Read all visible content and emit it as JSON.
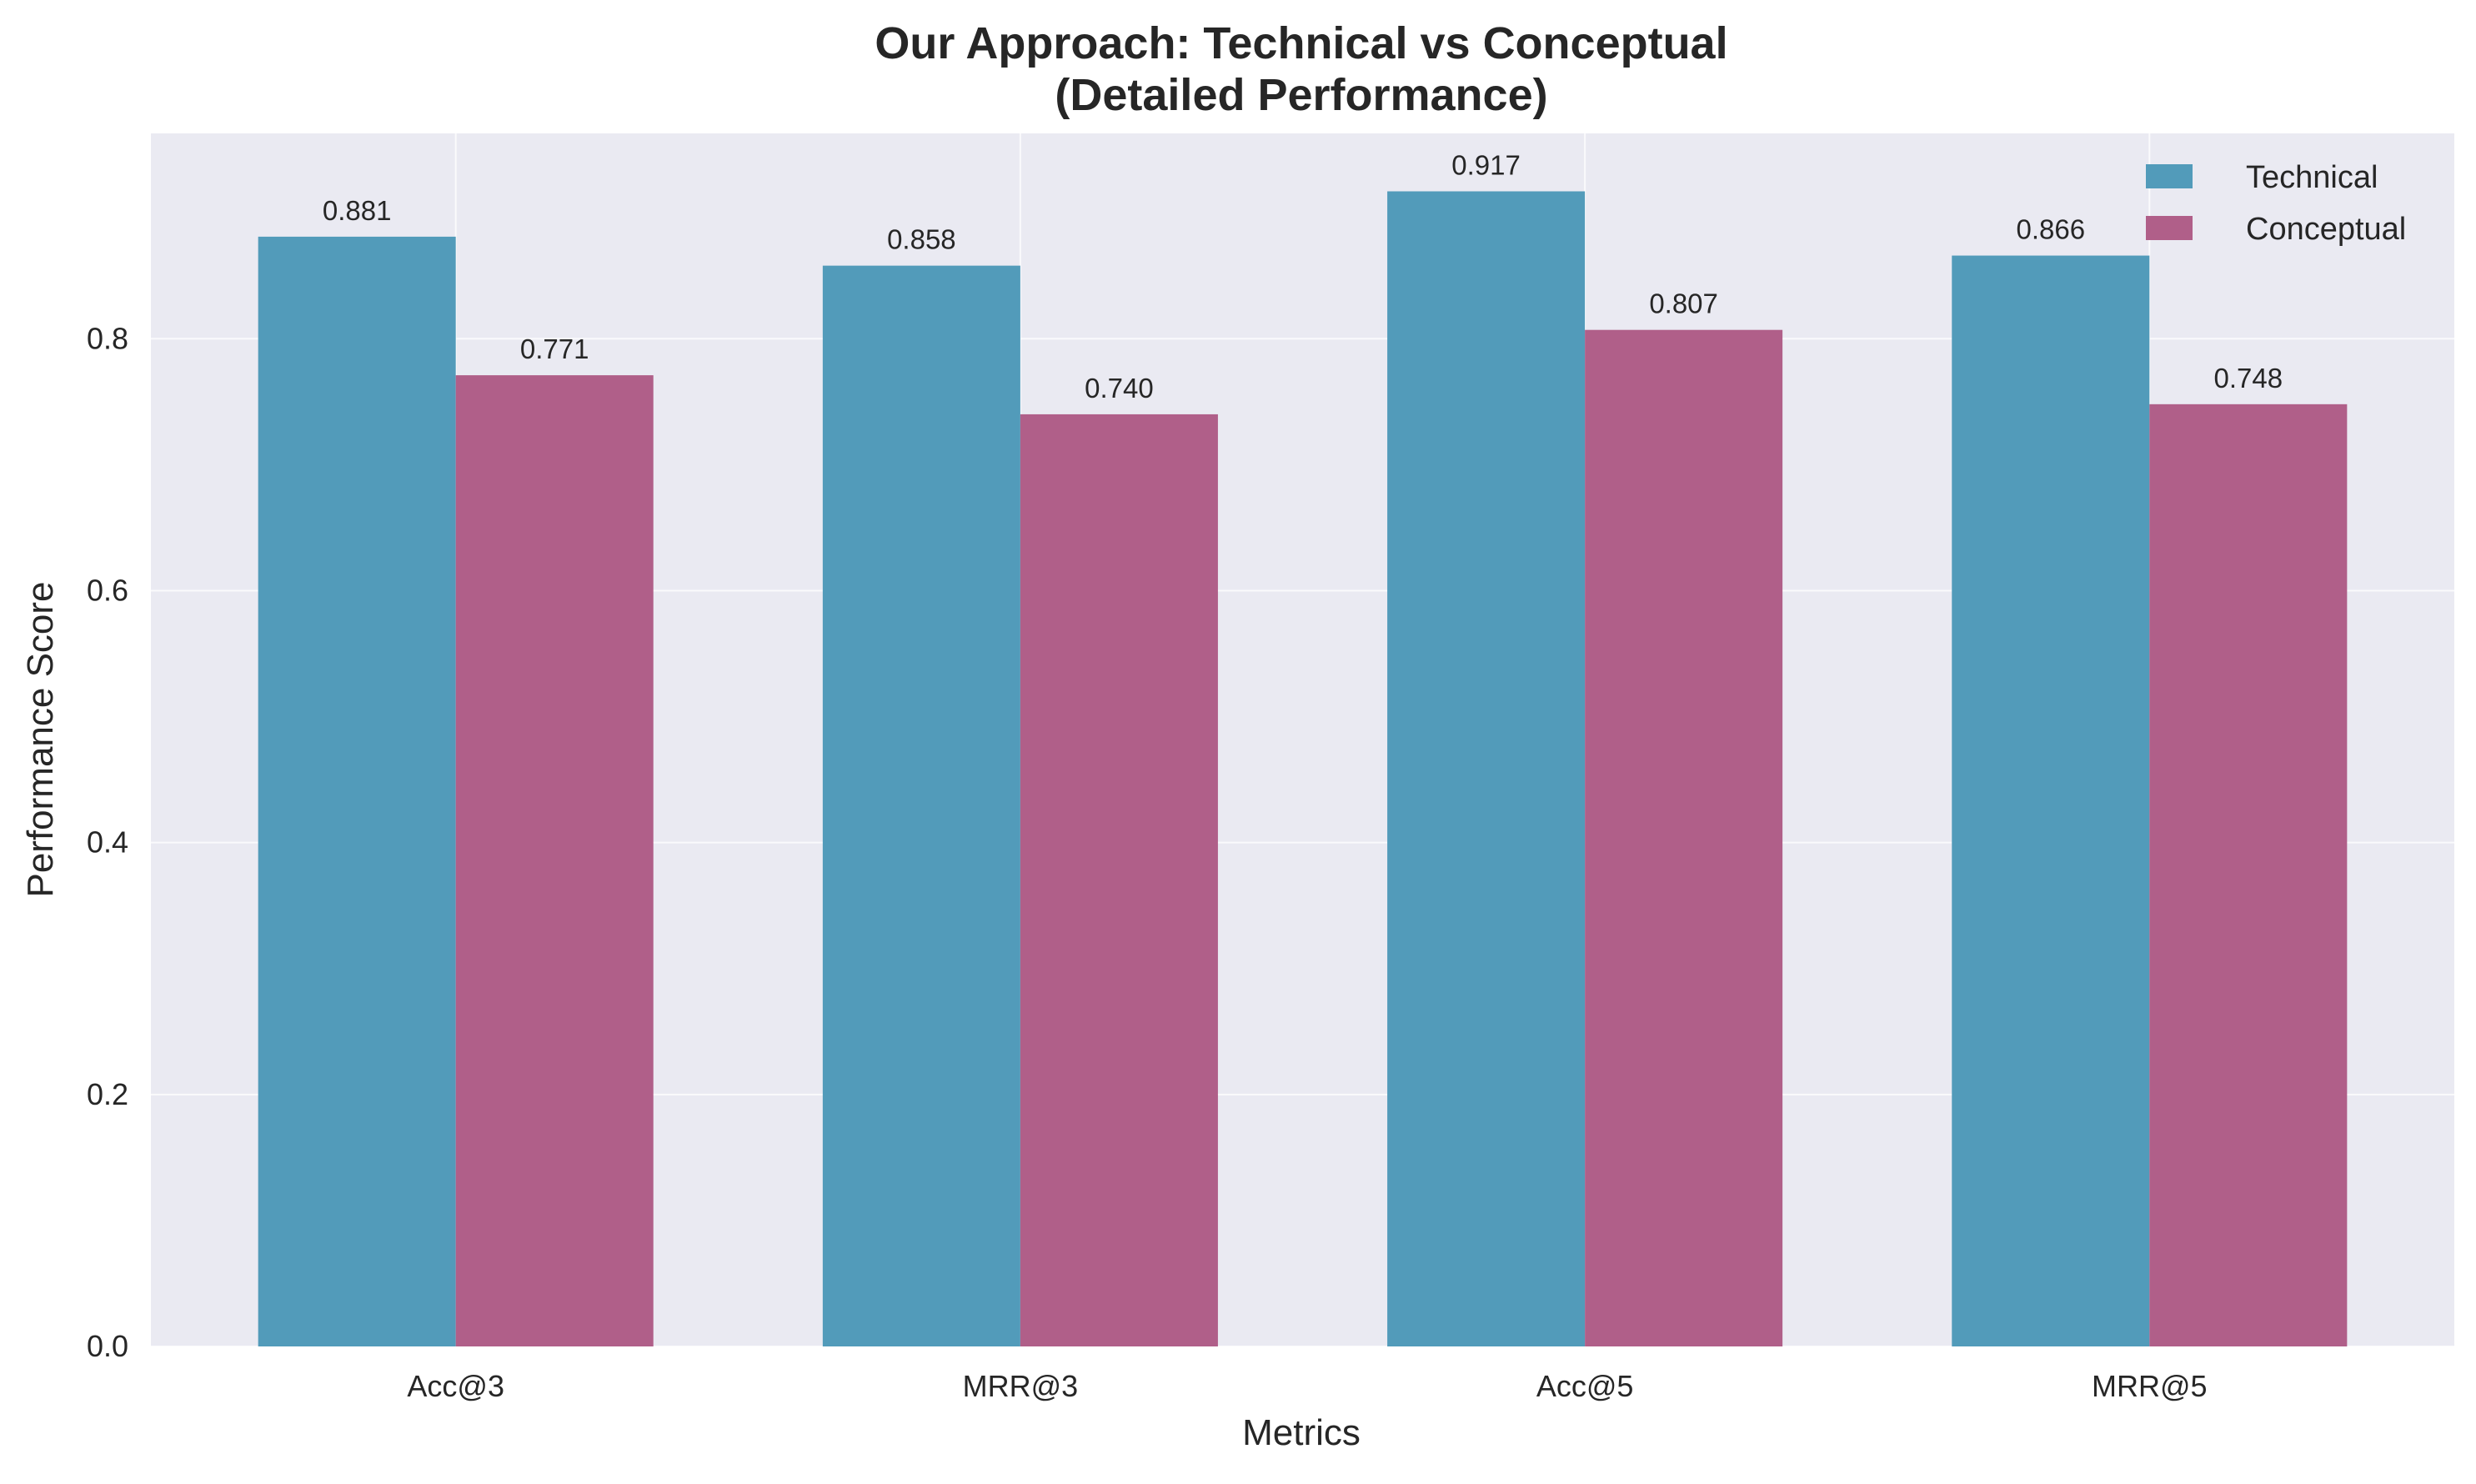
{
  "chart_data": {
    "type": "bar",
    "title": [
      "Our Approach: Technical vs Conceptual",
      "(Detailed Performance)"
    ],
    "xlabel": "Metrics",
    "ylabel": "Performance Score",
    "categories": [
      "Acc@3",
      "MRR@3",
      "Acc@5",
      "MRR@5"
    ],
    "series": [
      {
        "name": "Technical",
        "values": [
          0.881,
          0.858,
          0.917,
          0.866
        ],
        "labels": [
          "0.881",
          "0.858",
          "0.917",
          "0.866"
        ],
        "color": "#529bba"
      },
      {
        "name": "Conceptual",
        "values": [
          0.771,
          0.74,
          0.807,
          0.748
        ],
        "labels": [
          "0.771",
          "0.740",
          "0.807",
          "0.748"
        ],
        "color": "#b05f89"
      }
    ],
    "ylim": [
      0,
      0.963
    ],
    "yticks": [
      0.0,
      0.2,
      0.4,
      0.6,
      0.8
    ],
    "ytick_labels": [
      "0.0",
      "0.2",
      "0.4",
      "0.6",
      "0.8"
    ],
    "grid": true,
    "legend_position": "top-right",
    "background_color": "#eaeaf2"
  }
}
